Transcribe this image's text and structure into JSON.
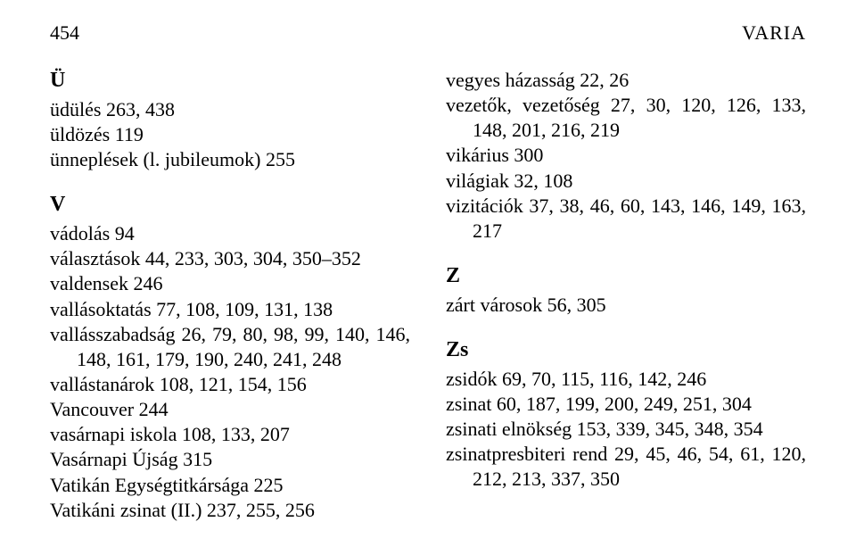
{
  "header": {
    "page_number": "454",
    "section_label": "VARIA"
  },
  "left": {
    "section_U": "Ü",
    "u_entries": [
      "üdülés 263, 438",
      "üldözés 119",
      "ünneplések (l. jubileumok) 255"
    ],
    "section_V": "V",
    "v_entries": [
      "vádolás 94",
      "választások 44, 233, 303, 304, 350–352",
      "valdensek 246",
      "vallásoktatás 77, 108, 109, 131, 138",
      "vallásszabadság 26, 79, 80, 98, 99, 140, 146, 148, 161, 179, 190, 240, 241, 248",
      "vallástanárok 108, 121, 154, 156",
      "Vancouver 244",
      "vasárnapi iskola 108, 133, 207",
      "Vasárnapi Újság 315",
      "Vatikán Egységtitkársága 225",
      "Vatikáni zsinat (II.) 237, 255, 256"
    ]
  },
  "right": {
    "v_entries": [
      "vegyes házasság 22, 26",
      "vezetők, vezetőség 27, 30, 120, 126, 133, 148, 201, 216, 219",
      "vikárius 300",
      "világiak 32, 108",
      "vizitációk 37, 38, 46, 60, 143, 146, 149, 163, 217"
    ],
    "section_Z": "Z",
    "z_entries": [
      "zárt városok 56, 305"
    ],
    "section_Zs": "Zs",
    "zs_entries": [
      "zsidók 69, 70, 115, 116, 142, 246",
      "zsinat 60, 187, 199, 200, 249, 251, 304",
      "zsinati elnökség 153, 339, 345, 348, 354",
      "zsinatpresbiteri rend 29, 45, 46, 54, 61, 120, 212, 213, 337, 350"
    ]
  }
}
